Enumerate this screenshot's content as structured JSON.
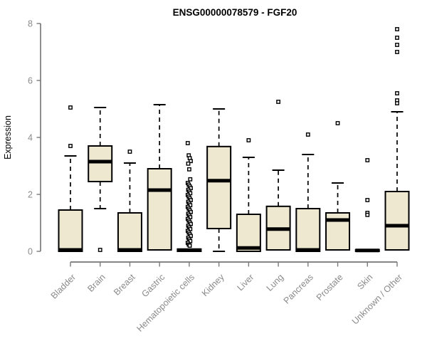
{
  "colors": {
    "box_fill": "#EDE8CF",
    "box_stroke": "#000000",
    "axis_line": "#5f5f5f",
    "tick_mark": "#7a7a7a",
    "label_gray": "#8a8a8a",
    "title_color": "#000000",
    "background": "#ffffff"
  },
  "chart_data": {
    "type": "boxplot",
    "title": "ENSG00000078579 - FGF20",
    "xlabel": "",
    "ylabel": "Expression",
    "ylim": [
      0,
      8
    ],
    "yticks": [
      0,
      2,
      4,
      6,
      8
    ],
    "grid": false,
    "legend": "none",
    "categories": [
      "Bladder",
      "Brain",
      "Breast",
      "Gastric",
      "Hematopoietic cells",
      "Kidney",
      "Liver",
      "Lung",
      "Pancreas",
      "Prostate",
      "Skin",
      "Unknown / Other"
    ],
    "series": [
      {
        "name": "Bladder",
        "whisker_low": 0,
        "q1": 0,
        "median": 0.05,
        "q3": 1.45,
        "whisker_high": 3.35,
        "outliers": [
          3.7,
          5.05
        ]
      },
      {
        "name": "Brain",
        "whisker_low": 1.5,
        "q1": 2.45,
        "median": 3.15,
        "q3": 3.7,
        "whisker_high": 5.05,
        "outliers": [
          0.05
        ]
      },
      {
        "name": "Breast",
        "whisker_low": 0,
        "q1": 0,
        "median": 0.05,
        "q3": 1.35,
        "whisker_high": 3.1,
        "outliers": [
          3.5
        ]
      },
      {
        "name": "Gastric",
        "whisker_low": 0.05,
        "q1": 0.05,
        "median": 2.15,
        "q3": 2.9,
        "whisker_high": 5.15,
        "outliers": []
      },
      {
        "name": "Hematopoietic cells",
        "whisker_low": 0,
        "q1": 0,
        "median": 0.04,
        "q3": 0.08,
        "whisker_high": 0.08,
        "outliers": [
          3.8,
          3.37,
          3.27,
          3.17,
          3.08,
          2.88,
          2.53,
          2.4,
          2.34,
          2.28,
          2.22,
          2.16,
          2.1,
          2.04,
          1.98,
          1.92,
          1.86,
          1.8,
          1.74,
          1.68,
          1.62,
          1.56,
          1.5,
          1.44,
          1.38,
          1.32,
          1.26,
          1.2,
          1.14,
          1.08,
          1.02,
          0.96,
          0.9,
          0.84,
          0.78,
          0.72,
          0.66,
          0.6,
          0.54,
          0.48,
          0.42,
          0.36,
          0.3,
          0.24,
          0.2
        ]
      },
      {
        "name": "Kidney",
        "whisker_low": 0,
        "q1": 0.8,
        "median": 2.48,
        "q3": 3.68,
        "whisker_high": 5.0,
        "outliers": []
      },
      {
        "name": "Liver",
        "whisker_low": 0,
        "q1": 0,
        "median": 0.12,
        "q3": 1.3,
        "whisker_high": 3.3,
        "outliers": [
          3.9
        ]
      },
      {
        "name": "Lung",
        "whisker_low": 0.05,
        "q1": 0.05,
        "median": 0.78,
        "q3": 1.58,
        "whisker_high": 2.85,
        "outliers": [
          5.25
        ]
      },
      {
        "name": "Pancreas",
        "whisker_low": 0,
        "q1": 0,
        "median": 0.05,
        "q3": 1.5,
        "whisker_high": 3.4,
        "outliers": [
          4.1
        ]
      },
      {
        "name": "Prostate",
        "whisker_low": 0.05,
        "q1": 0.05,
        "median": 1.1,
        "q3": 1.35,
        "whisker_high": 2.4,
        "outliers": [
          4.5
        ]
      },
      {
        "name": "Skin",
        "whisker_low": 0,
        "q1": 0,
        "median": 0.03,
        "q3": 0.06,
        "whisker_high": 0.06,
        "outliers": [
          3.2,
          1.8,
          1.35,
          1.28
        ]
      },
      {
        "name": "Unknown / Other",
        "whisker_low": 0.05,
        "q1": 0.05,
        "median": 0.9,
        "q3": 2.1,
        "whisker_high": 4.9,
        "outliers": [
          7.8,
          7.5,
          7.25,
          7.0,
          5.55,
          5.3,
          5.2
        ]
      }
    ]
  }
}
